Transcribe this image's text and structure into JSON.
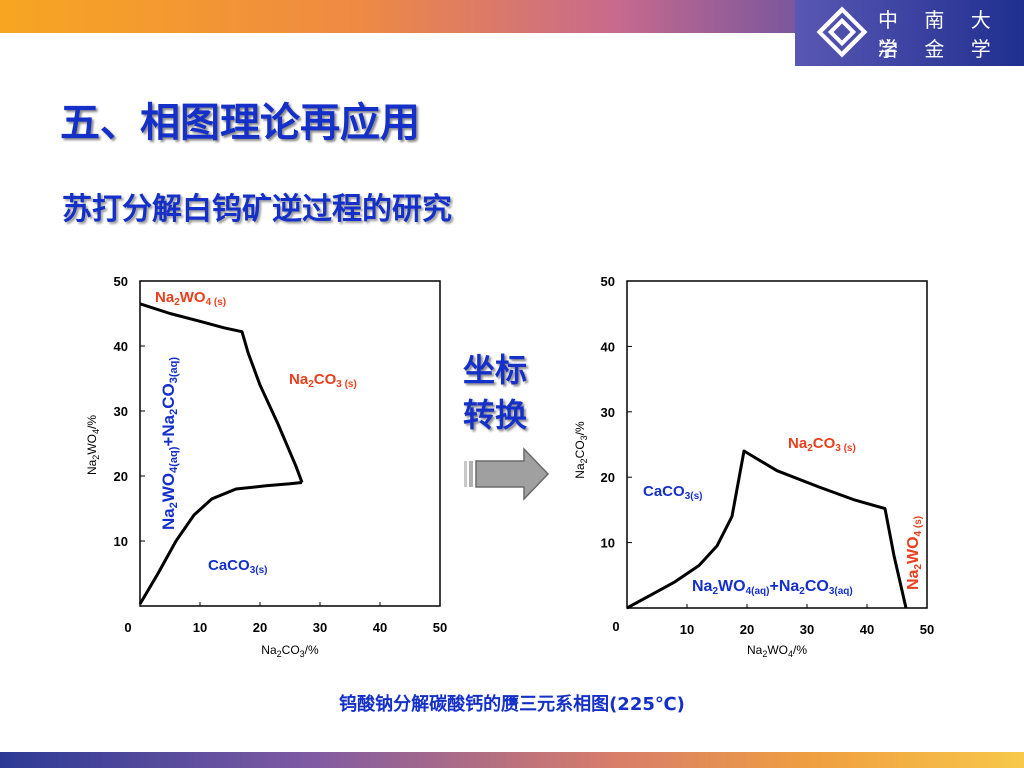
{
  "header": {
    "school_name_line1": "中 南 大 学",
    "school_name_line2": "冶 金 学 院"
  },
  "slide": {
    "title": "五、相图理论再应用",
    "subtitle": "苏打分解白钨矿逆过程的研究",
    "center_label_line1": "坐标",
    "center_label_line2": "转换",
    "caption": "钨酸钠分解碳酸钙的赝三元系相图(225℃)"
  },
  "colors": {
    "title_blue": "#1530c8",
    "label_red": "#e8401e",
    "label_blue": "#1530c8"
  },
  "icons": [
    "university-logo-icon",
    "right-arrow-icon"
  ],
  "chart_data": [
    {
      "type": "line",
      "xlabel": {
        "main": "Na",
        "sub1": "2",
        "mid": "CO",
        "sub2": "3",
        "tail": "/%"
      },
      "ylabel": {
        "main": "Na",
        "sub1": "2",
        "mid": "WO",
        "sub2": "4",
        "tail": "/%"
      },
      "xlim": [
        0,
        50
      ],
      "ylim": [
        0,
        50
      ],
      "x_ticks": [
        "10",
        "20",
        "30",
        "40",
        "50"
      ],
      "y_ticks": [
        "10",
        "20",
        "30",
        "40",
        "50"
      ],
      "origin_label": "0",
      "series": [
        {
          "points": [
            [
              0,
              46.5
            ],
            [
              5,
              45
            ],
            [
              10,
              43.8
            ],
            [
              14,
              42.8
            ],
            [
              17,
              42.2
            ],
            [
              18,
              39
            ],
            [
              20,
              34
            ],
            [
              23,
              28
            ],
            [
              26,
              21.5
            ],
            [
              27,
              19
            ]
          ]
        },
        {
          "points": [
            [
              0,
              0.3
            ],
            [
              3,
              5
            ],
            [
              6,
              10
            ],
            [
              9,
              14
            ],
            [
              12,
              16.5
            ],
            [
              16,
              18
            ],
            [
              21,
              18.5
            ],
            [
              25,
              18.8
            ],
            [
              27,
              19
            ]
          ]
        }
      ],
      "region_labels": [
        {
          "base": "Na",
          "s1": "2",
          "mid": "WO",
          "s2": "4 (s)",
          "color": "red"
        },
        {
          "base": "Na",
          "s1": "2",
          "mid": "CO",
          "s2": "3 (s)",
          "color": "red"
        },
        {
          "base": "CaCO",
          "s1": "3(s)",
          "mid": "",
          "s2": "",
          "color": "blue"
        },
        {
          "t1": "Na",
          "t2": "2",
          "t3": "WO",
          "t4": "4(aq)",
          "t5": "+Na",
          "t6": "2",
          "t7": "CO",
          "t8": "3(aq)",
          "color": "blue",
          "rotated": true
        }
      ]
    },
    {
      "type": "line",
      "xlabel": {
        "main": "Na",
        "sub1": "2",
        "mid": "WO",
        "sub2": "4",
        "tail": "/%"
      },
      "ylabel": {
        "main": "Na",
        "sub1": "2",
        "mid": "CO",
        "sub2": "3",
        "tail": "/%"
      },
      "xlim": [
        0,
        50
      ],
      "ylim": [
        0,
        50
      ],
      "x_ticks": [
        "10",
        "20",
        "30",
        "40",
        "50"
      ],
      "y_ticks": [
        "10",
        "20",
        "30",
        "40",
        "50"
      ],
      "origin_label": "0",
      "series": [
        {
          "points": [
            [
              0,
              0
            ],
            [
              4,
              2
            ],
            [
              8,
              4
            ],
            [
              12,
              6.5
            ],
            [
              15,
              9.5
            ],
            [
              17.5,
              14
            ],
            [
              19.5,
              24
            ],
            [
              25,
              21
            ],
            [
              32,
              18.5
            ],
            [
              38,
              16.5
            ],
            [
              43,
              15.2
            ],
            [
              44.5,
              8
            ],
            [
              46.5,
              0
            ]
          ]
        }
      ],
      "region_labels": [
        {
          "base": "Na",
          "s1": "2",
          "mid": "CO",
          "s2": "3 (s)",
          "color": "red"
        },
        {
          "base": "CaCO",
          "s1": "3(s)",
          "mid": "",
          "s2": "",
          "color": "blue"
        },
        {
          "t1": "Na",
          "t2": "2",
          "t3": "WO",
          "t4": "4(aq)",
          "t5": "+Na",
          "t6": "2",
          "t7": "CO",
          "t8": "3(aq)",
          "color": "blue"
        },
        {
          "base": "Na",
          "s1": "2",
          "mid": "WO",
          "s2": "4 (s)",
          "color": "red",
          "rotated": true
        }
      ]
    }
  ]
}
